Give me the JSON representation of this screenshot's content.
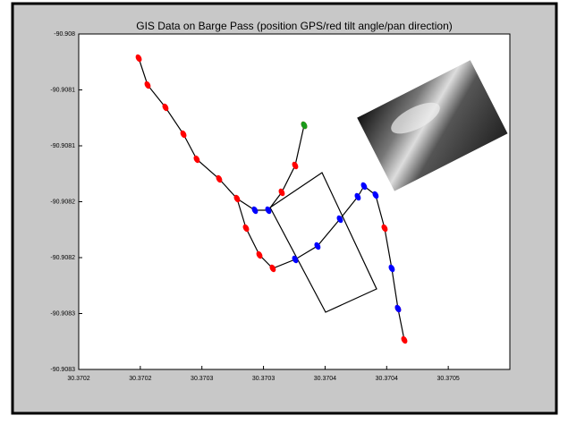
{
  "chart_data": {
    "type": "line",
    "title": "GIS Data on Barge Pass (position GPS/red tilt angle/pan direction)",
    "xlim": [
      30.37015,
      30.3705
    ],
    "xticks": [
      {
        "value": 30.37015,
        "label": "30.3702"
      },
      {
        "value": 30.3702,
        "label": "30.3702"
      },
      {
        "value": 30.37025,
        "label": "30.3703"
      },
      {
        "value": 30.3703,
        "label": "30.3703"
      },
      {
        "value": 30.37035,
        "label": "30.3704"
      },
      {
        "value": 30.3704,
        "label": "30.3704"
      },
      {
        "value": 30.37045,
        "label": "30.3705"
      }
    ],
    "ylim": [
      -90.9083,
      -90.908
    ],
    "yticks": [
      {
        "value": -90.908,
        "label": "-90.908"
      },
      {
        "value": -90.90805,
        "label": "-90.9081"
      },
      {
        "value": -90.9081,
        "label": "-90.9081"
      },
      {
        "value": -90.90815,
        "label": "-90.9082"
      },
      {
        "value": -90.9082,
        "label": "-90.9082"
      },
      {
        "value": -90.90825,
        "label": "-90.9083"
      },
      {
        "value": -90.9083,
        "label": "-90.9083"
      }
    ],
    "series": [
      {
        "color": "#000000",
        "style": "line",
        "x": [
          30.3701987,
          30.3702059,
          30.3702204,
          30.370235,
          30.3702458,
          30.370264,
          30.3702785,
          30.3702858,
          30.3702967,
          30.3703075,
          30.3703257,
          30.3703438,
          30.370362,
          30.3703765,
          30.3703816,
          30.370391,
          30.3703983,
          30.3704041,
          30.3704092,
          30.3704143
        ],
        "values": [
          -90.9080216,
          -90.9080456,
          -90.9080656,
          -90.9080896,
          -90.908112,
          -90.9081296,
          -90.9081472,
          -90.9081736,
          -90.9081976,
          -90.9082096,
          -90.9082016,
          -90.9081896,
          -90.9081656,
          -90.9081456,
          -90.908136,
          -90.908144,
          -90.9081736,
          -90.9082096,
          -90.9082456,
          -90.9082736
        ]
      },
      {
        "color": "#000000",
        "style": "line",
        "x": [
          30.3702785,
          30.370293,
          30.3703039,
          30.3703148,
          30.3703257,
          30.370333
        ],
        "values": [
          -90.9081472,
          -90.9081576,
          -90.9081576,
          -90.9081416,
          -90.9081176,
          -90.9080816
        ]
      },
      {
        "color": "#ff0000",
        "style": "markers",
        "x": [
          30.3701987,
          30.3702059,
          30.3702204,
          30.370235,
          30.3702458,
          30.370264,
          30.3702785,
          30.3702858,
          30.3702967,
          30.3703075,
          30.3703148,
          30.3703257,
          30.370333,
          30.3703983,
          30.3704092,
          30.3704143
        ],
        "values": [
          -90.9080216,
          -90.9080456,
          -90.9080656,
          -90.9080896,
          -90.908112,
          -90.9081296,
          -90.9081472,
          -90.9081736,
          -90.9081976,
          -90.9082096,
          -90.9081416,
          -90.9081176,
          -90.9080816,
          -90.9081736,
          -90.9082456,
          -90.9082736
        ]
      },
      {
        "color": "#0000ff",
        "style": "markers",
        "x": [
          30.370293,
          30.3703039,
          30.3703257,
          30.3703438,
          30.370362,
          30.3703765,
          30.3703816,
          30.370391,
          30.3704041,
          30.3704092
        ],
        "values": [
          -90.9081576,
          -90.9081576,
          -90.9082016,
          -90.9081896,
          -90.9081656,
          -90.9081456,
          -90.908136,
          -90.908144,
          -90.9082096,
          -90.9082456
        ]
      },
      {
        "color": "#1a9a1a",
        "style": "markers",
        "x": [
          30.370333
        ],
        "values": [
          -90.9080816
        ]
      }
    ]
  }
}
